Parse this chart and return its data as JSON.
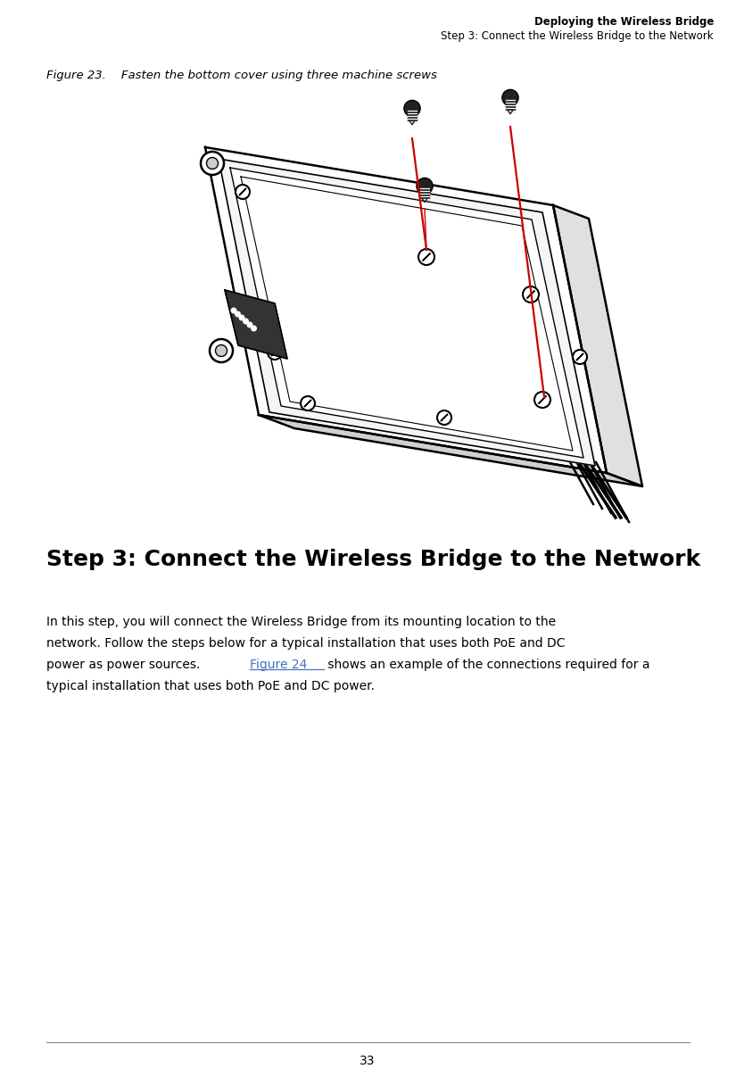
{
  "page_number": "33",
  "header_bold": "Deploying the Wireless Bridge",
  "header_normal": "Step 3: Connect the Wireless Bridge to the Network",
  "figure_caption": "Figure 23.    Fasten the bottom cover using three machine screws",
  "section_title": "Step 3: Connect the Wireless Bridge to the Network",
  "body_line1": "In this step, you will connect the Wireless Bridge from its mounting location to the",
  "body_line2": "network. Follow the steps below for a typical installation that uses both PoE and DC",
  "body_line3_pre": "power as power sources. ",
  "body_line3_link": "Figure 24",
  "body_line3_post": " shows an example of the connections required for a",
  "body_line4": "typical installation that uses both PoE and DC power.",
  "background_color": "#ffffff",
  "text_color": "#000000",
  "link_color": "#4472C4",
  "red_line_color": "#cc0000",
  "fig_width": 8.25,
  "fig_height": 11.98
}
